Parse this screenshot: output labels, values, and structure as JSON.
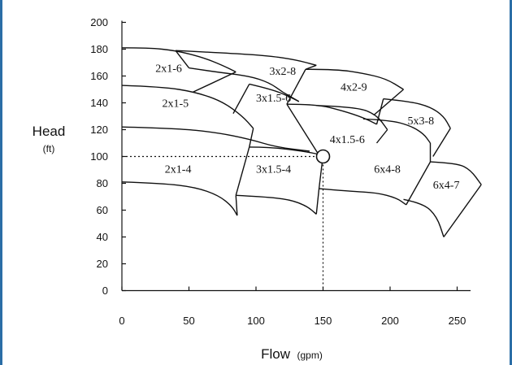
{
  "chart_data": {
    "type": "line",
    "title": "",
    "xlabel": "Flow",
    "xlabel_unit": "(gpm)",
    "ylabel": "Head",
    "ylabel_unit": "(ft)",
    "xlim": [
      0,
      260
    ],
    "ylim": [
      0,
      200
    ],
    "x_ticks": [
      0,
      50,
      100,
      150,
      200,
      250
    ],
    "y_ticks": [
      0,
      20,
      40,
      60,
      80,
      100,
      120,
      140,
      160,
      180,
      200
    ],
    "grid": false,
    "colors": {
      "line": "#111111",
      "frame": "#2b6ea6"
    },
    "curves": [
      {
        "id": "2x1-6-top",
        "points": [
          [
            0,
            181
          ],
          [
            20,
            181
          ],
          [
            40,
            179
          ],
          [
            60,
            174
          ],
          [
            75,
            168
          ],
          [
            85,
            163
          ]
        ]
      },
      {
        "id": "2x1-5-top",
        "points": [
          [
            0,
            153
          ],
          [
            30,
            152
          ],
          [
            55,
            148
          ],
          [
            75,
            141
          ],
          [
            90,
            130
          ],
          [
            98,
            121
          ]
        ]
      },
      {
        "id": "2x1-4-top",
        "points": [
          [
            0,
            122
          ],
          [
            40,
            121
          ],
          [
            70,
            118
          ],
          [
            95,
            113
          ],
          [
            115,
            107
          ],
          [
            140,
            104
          ]
        ]
      },
      {
        "id": "2x1-4-bottom",
        "points": [
          [
            0,
            81
          ],
          [
            30,
            80
          ],
          [
            55,
            77
          ],
          [
            72,
            71
          ],
          [
            82,
            63
          ],
          [
            86,
            56
          ]
        ]
      },
      {
        "id": "3x2-8-top",
        "points": [
          [
            40,
            179
          ],
          [
            80,
            177
          ],
          [
            110,
            175
          ],
          [
            130,
            172
          ],
          [
            145,
            168
          ]
        ]
      },
      {
        "id": "3x2-8-bottom",
        "points": [
          [
            50,
            166
          ],
          [
            70,
            163
          ],
          [
            95,
            160
          ],
          [
            110,
            155
          ],
          [
            120,
            148
          ]
        ]
      },
      {
        "id": "3x1.5-6-top",
        "points": [
          [
            95,
            154
          ],
          [
            112,
            150
          ],
          [
            124,
            145
          ],
          [
            132,
            141
          ]
        ]
      },
      {
        "id": "3x1.5-6-bottom",
        "points": [
          [
            95,
            107
          ],
          [
            110,
            107
          ],
          [
            135,
            104
          ],
          [
            150,
            101
          ]
        ]
      },
      {
        "id": "3x1.5-4-bottom",
        "points": [
          [
            85,
            71
          ],
          [
            105,
            70
          ],
          [
            125,
            68
          ],
          [
            138,
            63
          ],
          [
            145,
            57
          ]
        ]
      },
      {
        "id": "4x2-9-top",
        "points": [
          [
            137,
            165
          ],
          [
            160,
            165
          ],
          [
            180,
            162
          ],
          [
            197,
            158
          ],
          [
            210,
            150
          ]
        ]
      },
      {
        "id": "4x2-9-bottom",
        "points": [
          [
            123,
            139
          ],
          [
            145,
            139
          ],
          [
            165,
            134
          ],
          [
            180,
            129
          ],
          [
            190,
            124
          ]
        ]
      },
      {
        "id": "4x1.5-6-top",
        "points": [
          [
            145,
            138
          ],
          [
            175,
            137
          ],
          [
            190,
            131
          ],
          [
            198,
            120
          ]
        ]
      },
      {
        "id": "4x1.5-6-bottom",
        "points": [
          [
            147,
            76
          ],
          [
            170,
            74
          ],
          [
            190,
            73
          ],
          [
            205,
            69
          ],
          [
            212,
            64
          ]
        ]
      },
      {
        "id": "5x3-8-top",
        "points": [
          [
            195,
            143
          ],
          [
            215,
            141
          ],
          [
            230,
            137
          ],
          [
            240,
            130
          ],
          [
            245,
            121
          ]
        ]
      },
      {
        "id": "6x4-8-top",
        "points": [
          [
            180,
            128
          ],
          [
            200,
            127
          ],
          [
            215,
            123
          ],
          [
            225,
            117
          ],
          [
            230,
            110
          ]
        ]
      },
      {
        "id": "6x4-7-top",
        "points": [
          [
            230,
            96
          ],
          [
            250,
            95
          ],
          [
            260,
            90
          ],
          [
            268,
            79
          ]
        ]
      },
      {
        "id": "6x4-7-bottom",
        "points": [
          [
            210,
            68
          ],
          [
            225,
            65
          ],
          [
            235,
            55
          ],
          [
            240,
            40
          ]
        ]
      }
    ],
    "dividers": [
      {
        "points": [
          [
            85,
            163
          ],
          [
            53,
            148
          ]
        ]
      },
      {
        "points": [
          [
            98,
            121
          ],
          [
            95,
            107
          ]
        ]
      },
      {
        "points": [
          [
            86,
            56
          ],
          [
            85,
            71
          ]
        ]
      },
      {
        "points": [
          [
            85,
            71
          ],
          [
            95,
            107
          ]
        ]
      },
      {
        "points": [
          [
            40,
            179
          ],
          [
            50,
            166
          ]
        ]
      },
      {
        "points": [
          [
            120,
            148
          ],
          [
            132,
            141
          ]
        ]
      },
      {
        "points": [
          [
            95,
            154
          ],
          [
            83,
            132
          ]
        ]
      },
      {
        "points": [
          [
            145,
            168
          ],
          [
            137,
            165
          ]
        ]
      },
      {
        "points": [
          [
            137,
            165
          ],
          [
            123,
            139
          ]
        ]
      },
      {
        "points": [
          [
            123,
            139
          ],
          [
            147,
            101
          ]
        ]
      },
      {
        "points": [
          [
            150,
            101
          ],
          [
            147,
            76
          ]
        ]
      },
      {
        "points": [
          [
            145,
            57
          ],
          [
            147,
            76
          ]
        ]
      },
      {
        "points": [
          [
            190,
            124
          ],
          [
            195,
            143
          ]
        ]
      },
      {
        "points": [
          [
            210,
            150
          ],
          [
            188,
            131
          ]
        ]
      },
      {
        "points": [
          [
            198,
            120
          ],
          [
            190,
            110
          ]
        ]
      },
      {
        "points": [
          [
            230,
            110
          ],
          [
            230,
            96
          ]
        ]
      },
      {
        "points": [
          [
            230,
            96
          ],
          [
            212,
            64
          ]
        ]
      },
      {
        "points": [
          [
            268,
            79
          ],
          [
            240,
            40
          ]
        ]
      },
      {
        "points": [
          [
            245,
            121
          ],
          [
            232,
            100
          ]
        ]
      }
    ],
    "region_labels": [
      {
        "text": "2x1-6",
        "x": 25,
        "y": 163
      },
      {
        "text": "3x2-8",
        "x": 110,
        "y": 161
      },
      {
        "text": "4x2-9",
        "x": 163,
        "y": 149
      },
      {
        "text": "2x1-5",
        "x": 30,
        "y": 137
      },
      {
        "text": "3x1.5-6",
        "x": 100,
        "y": 141
      },
      {
        "text": "5x3-8",
        "x": 213,
        "y": 124
      },
      {
        "text": "4x1.5-6",
        "x": 155,
        "y": 110
      },
      {
        "text": "6x4-8",
        "x": 188,
        "y": 88
      },
      {
        "text": "2x1-4",
        "x": 32,
        "y": 88
      },
      {
        "text": "3x1.5-4",
        "x": 100,
        "y": 88
      },
      {
        "text": "6x4-7",
        "x": 232,
        "y": 76
      }
    ],
    "operating_point": {
      "x": 150,
      "y": 100
    }
  }
}
